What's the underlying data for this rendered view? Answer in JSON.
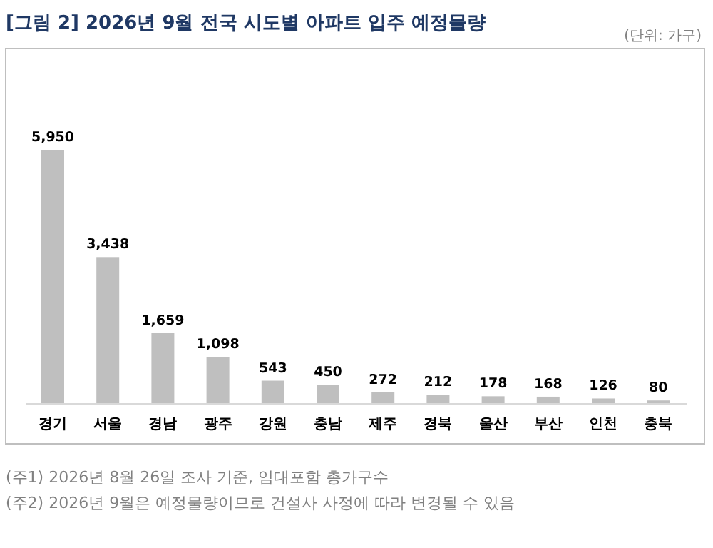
{
  "chart_data": {
    "type": "bar",
    "title": "[그림 2] 2026년 9월 전국 시도별 아파트 입주 예정물량",
    "subtitle": "(단위: 가구)",
    "categories": [
      "경기",
      "서울",
      "경남",
      "광주",
      "강원",
      "충남",
      "제주",
      "경북",
      "울산",
      "부산",
      "인천",
      "충북"
    ],
    "values": [
      5950,
      3438,
      1659,
      1098,
      543,
      450,
      272,
      212,
      178,
      168,
      126,
      80
    ],
    "value_labels": [
      "5,950",
      "3,438",
      "1,659",
      "1,098",
      "543",
      "450",
      "272",
      "212",
      "178",
      "168",
      "126",
      "80"
    ],
    "color": "#bfbfbf",
    "annotations": [
      "(주1) 2026년 8월 26일 조사 기준, 임대포함 총가구수",
      "(주2) 2026년 9월은 예정물량이므로 건설사 사정에 따라 변경될 수 있음"
    ]
  }
}
